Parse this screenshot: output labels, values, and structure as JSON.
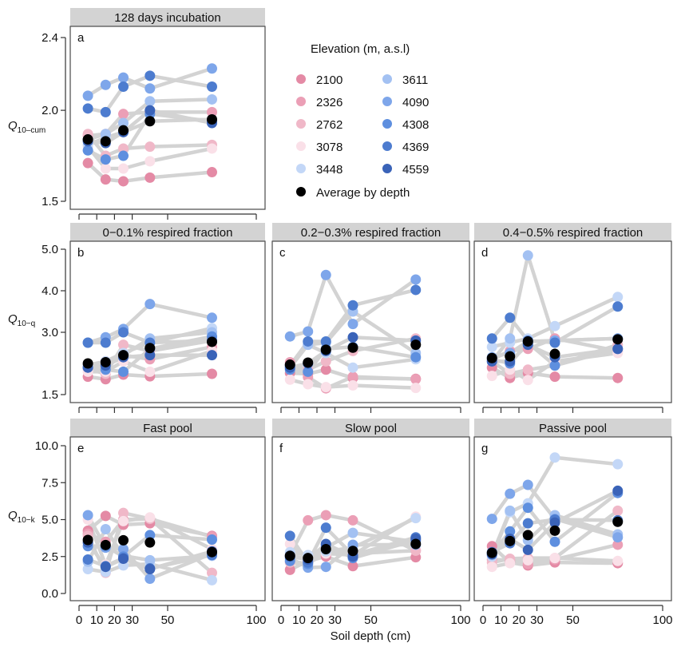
{
  "chart_data": {
    "type": "line",
    "xlabel": "Soil depth (cm)",
    "x": [
      5,
      15,
      25,
      40,
      75
    ],
    "x_ticks": [
      "0",
      "10",
      "20",
      "30",
      "50",
      "100"
    ],
    "x_tick_values": [
      0,
      10,
      20,
      30,
      50,
      100
    ],
    "xlim": [
      0,
      100
    ],
    "legend": {
      "title": "Elevation (m, a.s.l)",
      "entries": [
        {
          "name": "2100",
          "color": "#e48aa5"
        },
        {
          "name": "2326",
          "color": "#eb9fb6"
        },
        {
          "name": "2762",
          "color": "#f0b8c8"
        },
        {
          "name": "3078",
          "color": "#fae0e8"
        },
        {
          "name": "3448",
          "color": "#c3d7f7"
        },
        {
          "name": "3611",
          "color": "#a3c1f2"
        },
        {
          "name": "4090",
          "color": "#7ea6ea"
        },
        {
          "name": "4308",
          "color": "#5e8fdf"
        },
        {
          "name": "4369",
          "color": "#4d7ccf"
        },
        {
          "name": "4559",
          "color": "#3a63b8"
        }
      ],
      "average_label": "Average by depth",
      "average_color": "#000000",
      "line_color": "#d3d3d3"
    },
    "panels": [
      {
        "id": "a",
        "strip": "128 days incubation",
        "ylabel_main": "Q",
        "ylabel_sub": "10–cum",
        "ylim": [
          1.5,
          2.4
        ],
        "yticks": [
          "1.5",
          "2.0",
          "2.4"
        ],
        "ytick_values": [
          1.5,
          2.0,
          2.4
        ],
        "show_x_labels": false,
        "series": [
          {
            "name": "2100",
            "values": [
              1.71,
              1.62,
              1.61,
              1.63,
              1.66
            ]
          },
          {
            "name": "2326",
            "values": [
              1.86,
              1.87,
              1.98,
              1.99,
              1.99
            ]
          },
          {
            "name": "2762",
            "values": [
              1.87,
              1.75,
              1.79,
              1.8,
              1.81
            ]
          },
          {
            "name": "3078",
            "values": [
              1.8,
              1.68,
              1.68,
              1.72,
              1.79
            ]
          },
          {
            "name": "3448",
            "values": [
              1.81,
              1.85,
              1.88,
              1.94,
              1.95
            ]
          },
          {
            "name": "3611",
            "values": [
              1.84,
              1.87,
              1.93,
              2.05,
              2.06
            ]
          },
          {
            "name": "4090",
            "values": [
              2.08,
              2.14,
              2.18,
              2.12,
              2.23
            ]
          },
          {
            "name": "4308",
            "values": [
              1.78,
              1.73,
              1.75,
              1.98,
              1.94
            ]
          },
          {
            "name": "4369",
            "values": [
              2.01,
              1.99,
              2.13,
              2.19,
              2.13
            ]
          },
          {
            "name": "4559",
            "values": [
              1.83,
              1.82,
              1.88,
              2.0,
              1.93
            ]
          }
        ],
        "average": [
          1.84,
          1.83,
          1.89,
          1.94,
          1.95
        ]
      },
      {
        "id": "b",
        "strip": "0−0.1% respired fraction",
        "ylabel_main": "Q",
        "ylabel_sub": "10−q",
        "ylim": [
          1.5,
          5.0
        ],
        "yticks": [
          "1.5",
          "3.0",
          "4.0",
          "5.0"
        ],
        "ytick_values": [
          1.5,
          3.0,
          4.0,
          5.0
        ],
        "show_x_labels": false,
        "series": [
          {
            "name": "2100",
            "values": [
              1.93,
              1.87,
              1.98,
              1.94,
              2.0
            ]
          },
          {
            "name": "2326",
            "values": [
              2.21,
              2.3,
              2.45,
              2.35,
              2.65
            ]
          },
          {
            "name": "2762",
            "values": [
              2.12,
              2.0,
              2.7,
              2.55,
              2.8
            ]
          },
          {
            "name": "3078",
            "values": [
              2.05,
              2.05,
              2.3,
              2.05,
              2.55
            ]
          },
          {
            "name": "3448",
            "values": [
              2.2,
              2.3,
              2.5,
              2.75,
              3.1
            ]
          },
          {
            "name": "3611",
            "values": [
              2.2,
              2.28,
              2.45,
              2.85,
              3.0
            ]
          },
          {
            "name": "4090",
            "values": [
              2.75,
              2.88,
              3.08,
              3.68,
              3.35
            ]
          },
          {
            "name": "4308",
            "values": [
              2.15,
              2.1,
              2.05,
              2.6,
              2.9
            ]
          },
          {
            "name": "4369",
            "values": [
              2.75,
              2.75,
              3.0,
              2.75,
              2.8
            ]
          },
          {
            "name": "4559",
            "values": [
              2.15,
              2.2,
              2.4,
              2.45,
              2.45
            ]
          }
        ],
        "average": [
          2.25,
          2.28,
          2.45,
          2.62,
          2.77
        ]
      },
      {
        "id": "c",
        "strip": "0.2−0.3% respired fraction",
        "ylabel_main": "",
        "ylabel_sub": "",
        "ylim": [
          1.5,
          5.0
        ],
        "yticks": [],
        "ytick_values": [],
        "show_x_labels": false,
        "series": [
          {
            "name": "2100",
            "values": [
              2.02,
              2.0,
              2.1,
              1.9,
              1.88
            ]
          },
          {
            "name": "2326",
            "values": [
              2.28,
              1.92,
              1.65,
              1.93,
              1.87
            ]
          },
          {
            "name": "2762",
            "values": [
              2.2,
              2.1,
              2.3,
              2.55,
              2.85
            ]
          },
          {
            "name": "3078",
            "values": [
              1.86,
              1.75,
              1.68,
              1.72,
              1.66
            ]
          },
          {
            "name": "3448",
            "values": [
              2.15,
              2.7,
              2.5,
              2.15,
              2.35
            ]
          },
          {
            "name": "3611",
            "values": [
              2.18,
              2.7,
              2.75,
              3.5,
              2.5
            ]
          },
          {
            "name": "4090",
            "values": [
              2.9,
              3.02,
              4.38,
              3.2,
              4.27
            ]
          },
          {
            "name": "4308",
            "values": [
              2.1,
              2.05,
              2.6,
              2.65,
              2.4
            ]
          },
          {
            "name": "4369",
            "values": [
              2.2,
              2.78,
              2.78,
              3.65,
              4.02
            ]
          },
          {
            "name": "4559",
            "values": [
              2.15,
              2.25,
              2.55,
              2.88,
              2.8
            ]
          }
        ],
        "average": [
          2.22,
          2.27,
          2.58,
          2.63,
          2.7
        ]
      },
      {
        "id": "d",
        "strip": "0.4−0.5% respired fraction",
        "ylabel_main": "",
        "ylabel_sub": "",
        "ylim": [
          1.5,
          5.0
        ],
        "yticks": [],
        "ytick_values": [],
        "show_x_labels": false,
        "series": [
          {
            "name": "2100",
            "values": [
              2.15,
              1.9,
              2.02,
              1.93,
              1.9
            ]
          },
          {
            "name": "2326",
            "values": [
              2.35,
              2.55,
              2.6,
              2.85,
              2.55
            ]
          },
          {
            "name": "2762",
            "values": [
              2.3,
              2.0,
              2.1,
              2.2,
              2.7
            ]
          },
          {
            "name": "3078",
            "values": [
              1.95,
              2.1,
              1.85,
              2.3,
              2.5
            ]
          },
          {
            "name": "3448",
            "values": [
              2.65,
              2.75,
              2.85,
              3.15,
              3.85
            ]
          },
          {
            "name": "3611",
            "values": [
              2.3,
              2.85,
              4.85,
              2.8,
              2.85
            ]
          },
          {
            "name": "4090",
            "values": [
              2.4,
              2.5,
              2.78,
              2.8,
              2.85
            ]
          },
          {
            "name": "4308",
            "values": [
              2.35,
              2.25,
              2.75,
              2.2,
              2.6
            ]
          },
          {
            "name": "4369",
            "values": [
              2.85,
              3.35,
              2.8,
              2.75,
              3.62
            ]
          },
          {
            "name": "4559",
            "values": [
              2.3,
              2.3,
              2.7,
              2.4,
              2.6
            ]
          }
        ],
        "average": [
          2.38,
          2.42,
          2.78,
          2.48,
          2.83
        ]
      },
      {
        "id": "e",
        "strip": "Fast pool",
        "ylabel_main": "Q",
        "ylabel_sub": "10−k",
        "ylim": [
          0,
          10
        ],
        "yticks": [
          "0.0",
          "2.5",
          "5.0",
          "7.5",
          "10.0"
        ],
        "ytick_values": [
          0,
          2.5,
          5,
          7.5,
          10
        ],
        "show_x_labels": true,
        "series": [
          {
            "name": "2100",
            "values": [
              4.25,
              5.25,
              4.65,
              4.75,
              3.9
            ]
          },
          {
            "name": "2326",
            "values": [
              4.05,
              3.5,
              5.0,
              5.05,
              3.85
            ]
          },
          {
            "name": "2762",
            "values": [
              3.9,
              1.4,
              5.45,
              5.05,
              1.4
            ]
          },
          {
            "name": "3078",
            "values": [
              5.0,
              1.95,
              4.9,
              5.15,
              3.0
            ]
          },
          {
            "name": "3448",
            "values": [
              1.65,
              1.45,
              1.9,
              2.0,
              0.9
            ]
          },
          {
            "name": "3611",
            "values": [
              2.15,
              4.35,
              2.55,
              2.25,
              2.55
            ]
          },
          {
            "name": "4090",
            "values": [
              5.3,
              3.1,
              3.0,
              1.0,
              2.7
            ]
          },
          {
            "name": "4308",
            "values": [
              3.2,
              3.2,
              2.5,
              3.95,
              3.65
            ]
          },
          {
            "name": "4369",
            "values": [
              2.3,
              1.85,
              2.4,
              1.7,
              2.6
            ]
          },
          {
            "name": "4559",
            "values": [
              3.45,
              1.8,
              2.35,
              1.65,
              2.85
            ]
          }
        ],
        "average": [
          3.62,
          3.28,
          3.6,
          3.45,
          2.8
        ]
      },
      {
        "id": "f",
        "strip": "Slow pool",
        "ylabel_main": "",
        "ylabel_sub": "",
        "ylim": [
          0,
          10
        ],
        "yticks": [],
        "ytick_values": [],
        "show_x_labels": true,
        "series": [
          {
            "name": "2100",
            "values": [
              1.6,
              2.2,
              2.5,
              1.85,
              2.45
            ]
          },
          {
            "name": "2326",
            "values": [
              2.6,
              4.95,
              5.3,
              4.95,
              2.9
            ]
          },
          {
            "name": "2762",
            "values": [
              2.1,
              2.0,
              2.8,
              2.7,
              2.9
            ]
          },
          {
            "name": "3078",
            "values": [
              3.35,
              2.3,
              2.7,
              2.6,
              5.2
            ]
          },
          {
            "name": "3448",
            "values": [
              2.8,
              2.6,
              2.85,
              3.1,
              5.1
            ]
          },
          {
            "name": "3611",
            "values": [
              2.6,
              2.3,
              3.1,
              4.1,
              3.5
            ]
          },
          {
            "name": "4090",
            "values": [
              2.4,
              1.75,
              1.8,
              3.3,
              3.3
            ]
          },
          {
            "name": "4308",
            "values": [
              2.2,
              2.0,
              3.3,
              2.4,
              3.6
            ]
          },
          {
            "name": "4369",
            "values": [
              3.9,
              2.1,
              4.45,
              2.6,
              3.8
            ]
          },
          {
            "name": "4559",
            "values": [
              2.5,
              2.3,
              3.35,
              2.5,
              3.7
            ]
          }
        ],
        "average": [
          2.55,
          2.4,
          3.0,
          2.88,
          3.35
        ]
      },
      {
        "id": "g",
        "strip": "Passive pool",
        "ylabel_main": "",
        "ylabel_sub": "",
        "ylim": [
          0,
          10
        ],
        "yticks": [],
        "ytick_values": [],
        "show_x_labels": true,
        "series": [
          {
            "name": "2100",
            "values": [
              3.2,
              2.1,
              1.9,
              2.1,
              2.05
            ]
          },
          {
            "name": "2326",
            "values": [
              2.3,
              2.25,
              2.0,
              2.3,
              3.3
            ]
          },
          {
            "name": "2762",
            "values": [
              2.1,
              2.35,
              2.4,
              2.4,
              5.6
            ]
          },
          {
            "name": "3078",
            "values": [
              1.8,
              2.05,
              2.25,
              2.4,
              2.2
            ]
          },
          {
            "name": "3448",
            "values": [
              2.5,
              5.5,
              6.1,
              9.2,
              8.75
            ]
          },
          {
            "name": "3611",
            "values": [
              2.6,
              5.6,
              3.6,
              5.3,
              4.0
            ]
          },
          {
            "name": "4090",
            "values": [
              5.05,
              6.75,
              7.35,
              5.05,
              3.8
            ]
          },
          {
            "name": "4308",
            "values": [
              2.7,
              4.2,
              5.8,
              3.5,
              6.8
            ]
          },
          {
            "name": "4369",
            "values": [
              2.8,
              3.4,
              4.75,
              5.0,
              4.95
            ]
          },
          {
            "name": "4559",
            "values": [
              2.65,
              3.7,
              2.95,
              4.8,
              6.95
            ]
          }
        ],
        "average": [
          2.75,
          3.55,
          3.95,
          4.25,
          4.85
        ]
      }
    ]
  }
}
